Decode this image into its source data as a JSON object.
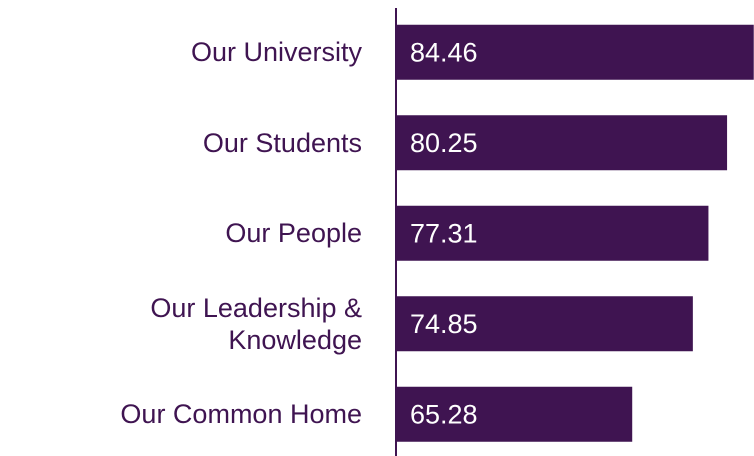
{
  "chart_data": {
    "type": "barh",
    "categories": [
      "Our University",
      "Our Students",
      "Our People",
      "Our Leadership & Knowledge",
      "Our Common Home"
    ],
    "values": [
      84.46,
      80.25,
      77.31,
      74.85,
      65.28
    ],
    "color": "#3f1451",
    "xlim": [
      28,
      84.5
    ]
  }
}
